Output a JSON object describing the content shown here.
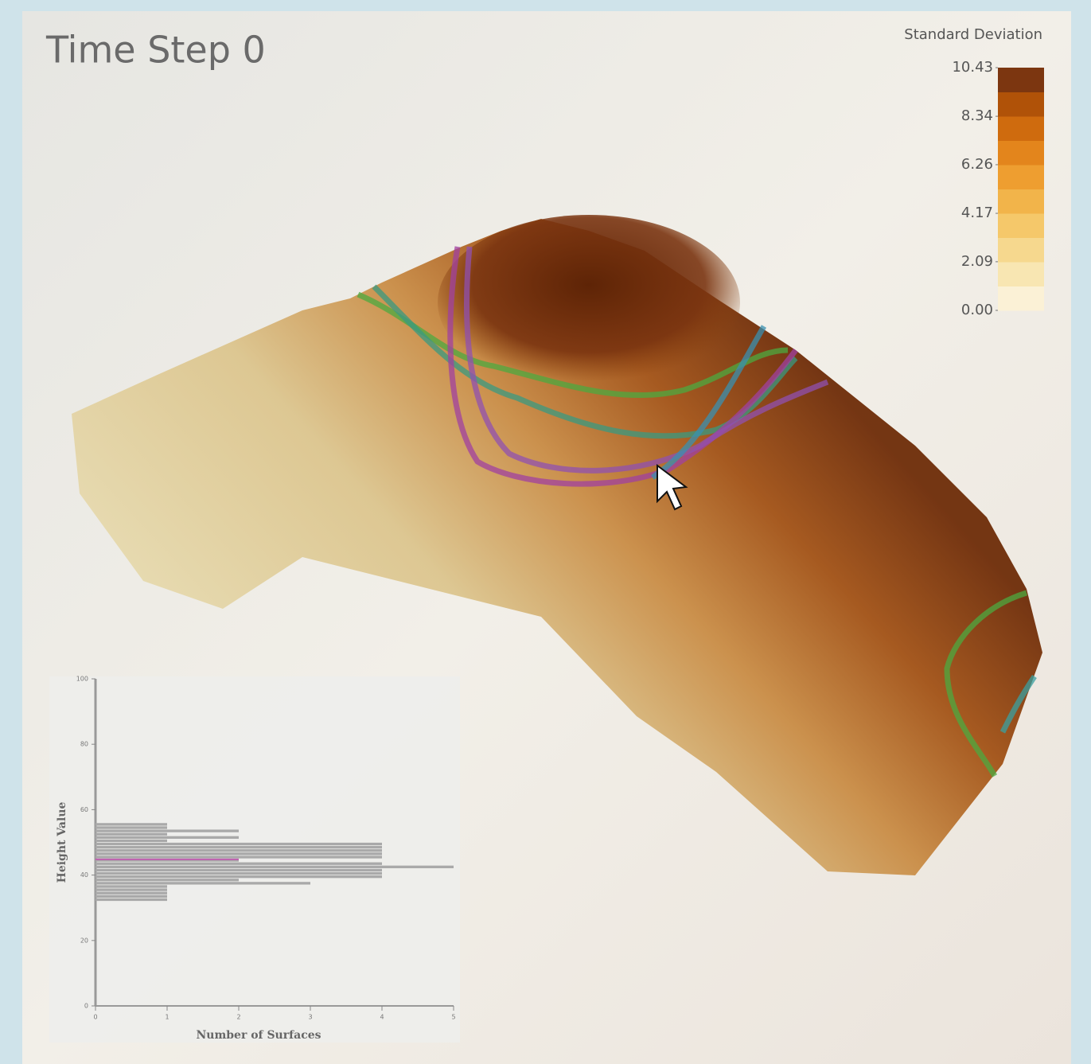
{
  "title": "Time Step 0",
  "legend": {
    "title": "Standard Deviation",
    "range": [
      0,
      10.43
    ],
    "ticks": [
      10.43,
      8.34,
      6.26,
      4.17,
      2.09,
      {
        "value": 0,
        "label": "0.00"
      }
    ],
    "colors": [
      "#fbf1d6",
      "#f8e6b2",
      "#f6d88e",
      "#f5c86a",
      "#f2b44a",
      "#ee9e30",
      "#e3851c",
      "#cf6b0e",
      "#b05208",
      "#7c3610"
    ]
  },
  "chart_data": {
    "type": "histogram",
    "orientation": "horizontal",
    "color": "#a9a9a9",
    "x_label": "Number of Surfaces",
    "y_label": "Height Value",
    "bins": [
      32,
      33,
      34,
      35,
      36,
      37,
      38,
      39,
      40,
      41,
      42,
      43,
      44,
      45,
      46,
      47,
      48,
      49,
      50,
      51,
      52,
      53,
      54,
      55,
      56
    ],
    "values": [
      1,
      1,
      1,
      1,
      1,
      3,
      2,
      4,
      4,
      4,
      5,
      4,
      2,
      4,
      4,
      4,
      4,
      4,
      1,
      2,
      1,
      2,
      1,
      1
    ],
    "marker": {
      "value": 44.8,
      "count": 2,
      "color": "#c060b0"
    },
    "xlim": [
      0,
      5
    ],
    "xticks": [
      0,
      1,
      2,
      3,
      4,
      5
    ],
    "ylim": [
      0,
      100
    ],
    "yticks": [
      0,
      20,
      40,
      60,
      80,
      100
    ]
  }
}
